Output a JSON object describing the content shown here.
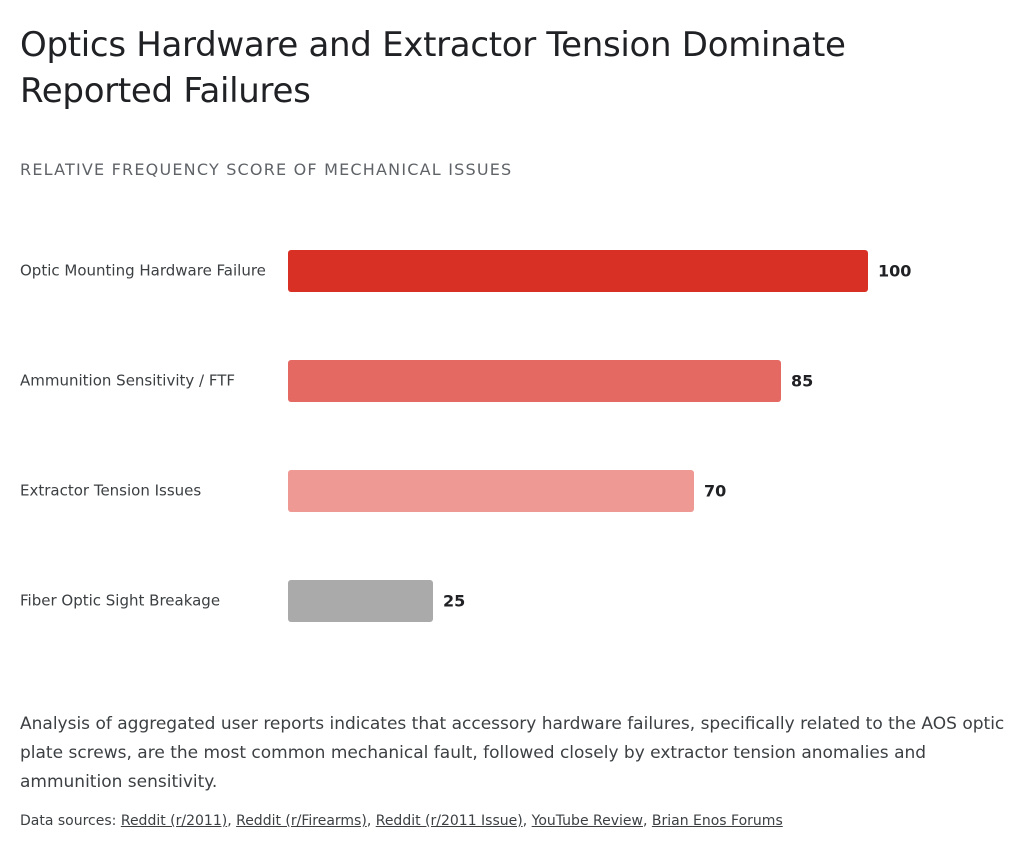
{
  "chart_data": {
    "type": "bar",
    "orientation": "horizontal",
    "title": "Optics Hardware and Extractor Tension Dominate Reported Failures",
    "subtitle": "RELATIVE FREQUENCY SCORE OF MECHANICAL ISSUES",
    "categories": [
      "Optic Mounting Hardware Failure",
      "Ammunition Sensitivity / FTF",
      "Extractor Tension Issues",
      "Fiber Optic Sight Breakage"
    ],
    "values": [
      100,
      85,
      70,
      25
    ],
    "colors": [
      "#d93025",
      "#e46962",
      "#ee9994",
      "#aaaaaa"
    ],
    "grid": false
  },
  "description": "Analysis of aggregated user reports indicates that accessory hardware failures, specifically related to the AOS optic plate screws, are the most common mechanical fault, followed closely by extractor tension anomalies and ammunition sensitivity.",
  "sources": {
    "label": "Data sources:",
    "links": [
      "Reddit (r/2011)",
      "Reddit (r/Firearms)",
      "Reddit (r/2011 Issue)",
      "YouTube Review",
      "Brian Enos Forums"
    ]
  }
}
